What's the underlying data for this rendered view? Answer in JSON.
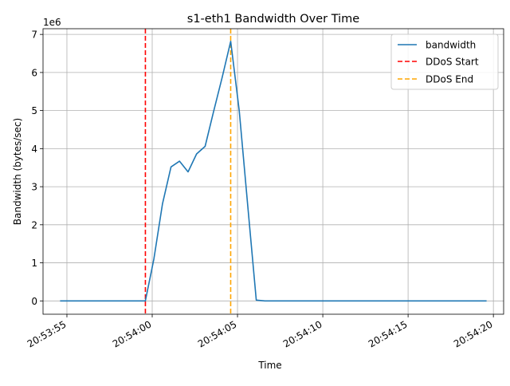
{
  "chart_data": {
    "type": "line",
    "title": "s1-eth1 Bandwidth Over Time",
    "xlabel": "Time",
    "ylabel": "Bandwidth (bytes/sec)",
    "y_offset_label": "1e6",
    "x_ticks": [
      "20:53:55",
      "20:54:00",
      "20:54:05",
      "20:54:10",
      "20:54:15",
      "20:54:20"
    ],
    "x_tick_seconds": [
      55,
      60,
      65,
      70,
      75,
      80
    ],
    "y_ticks": [
      0,
      1,
      2,
      3,
      4,
      5,
      6,
      7
    ],
    "xlim": [
      53.6,
      80.6
    ],
    "ylim": [
      -0.35,
      7.15
    ],
    "grid": true,
    "legend_position": "top-right",
    "series": [
      {
        "name": "bandwidth",
        "color": "#1f77b4",
        "x": [
          54.6,
          55.5,
          56.5,
          57.5,
          58.5,
          59.6,
          60.1,
          60.6,
          61.1,
          61.6,
          62.1,
          62.6,
          63.1,
          63.6,
          64.1,
          64.6,
          65.1,
          65.6,
          66.1,
          66.6,
          67.1,
          68,
          69,
          70,
          71,
          72,
          73,
          74,
          75,
          76,
          77,
          78,
          79,
          79.6
        ],
        "values": [
          0,
          0,
          0,
          0,
          0,
          0,
          1.1,
          2.55,
          3.52,
          3.67,
          3.39,
          3.86,
          4.06,
          4.98,
          5.87,
          6.82,
          5.0,
          2.5,
          0.02,
          0,
          0,
          0,
          0,
          0,
          0,
          0,
          0,
          0,
          0,
          0,
          0,
          0,
          0,
          0
        ]
      }
    ],
    "markers": [
      {
        "name": "DDoS Start",
        "x": 59.6,
        "color": "#ff0000"
      },
      {
        "name": "DDoS End",
        "x": 64.6,
        "color": "#ffa500"
      }
    ]
  }
}
